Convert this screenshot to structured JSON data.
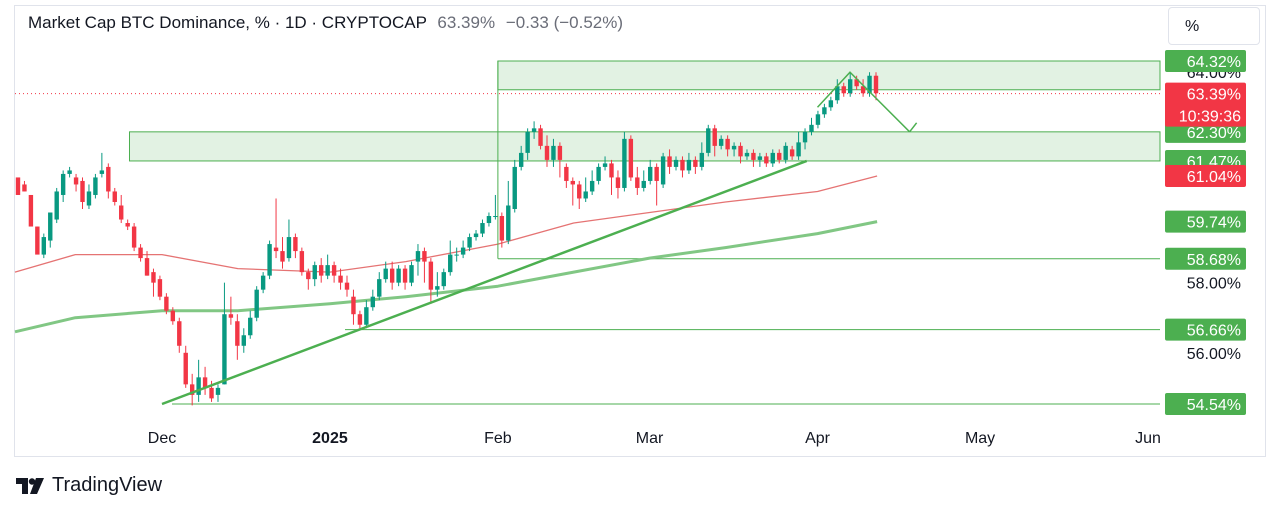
{
  "header": {
    "title": "Market Cap BTC Dominance, % · 1D · CRYPTOCAP",
    "last": "63.39%",
    "change": "−0.33 (−0.52%)"
  },
  "unit_button": "%",
  "brand": {
    "name": "TradingView",
    "logo_icon": "tradingview-logo-icon"
  },
  "price_tags": {
    "current": {
      "price": "63.39%",
      "countdown": "10:39:36",
      "color": "#f23645"
    },
    "ma_red": {
      "price": "61.04%",
      "color": "#f23645"
    },
    "levels": [
      {
        "price": "64.32%",
        "color": "#4caf50"
      },
      {
        "price": "62.30%",
        "color": "#4caf50"
      },
      {
        "price": "61.47%",
        "color": "#4caf50"
      },
      {
        "price": "59.74%",
        "color": "#4caf50"
      },
      {
        "price": "58.68%",
        "color": "#4caf50"
      },
      {
        "price": "56.66%",
        "color": "#4caf50"
      },
      {
        "price": "54.54%",
        "color": "#4caf50"
      }
    ],
    "axis_ticks": [
      "64.00%",
      "58.00%",
      "56.00%"
    ]
  },
  "chart_data": {
    "type": "candlestick",
    "xlabel": "",
    "ylabel": "",
    "x_ticks": [
      "Dec",
      "2025",
      "Feb",
      "Mar",
      "Apr",
      "May",
      "Jun"
    ],
    "x_tick_dates": [
      "2024-12-01",
      "2025-01-01",
      "2025-02-01",
      "2025-03-01",
      "2025-04-01",
      "2025-05-01",
      "2025-06-01"
    ],
    "y_ticks": [
      58.0,
      56.0
    ],
    "last_value": 63.39,
    "up_color": "#089981",
    "down_color": "#f23645",
    "series": [
      {
        "kind": "ohlc",
        "values": [
          [
            61.0,
            60.5,
            61.0,
            60.5
          ],
          [
            60.8,
            60.6,
            60.9,
            60.6
          ],
          [
            60.5,
            59.6,
            60.5,
            59.7
          ],
          [
            59.6,
            58.8,
            59.6,
            58.9
          ],
          [
            58.8,
            59.3,
            59.4,
            58.7
          ],
          [
            59.2,
            60.0,
            60.0,
            59.0
          ],
          [
            59.8,
            60.6,
            60.7,
            59.7
          ],
          [
            60.5,
            61.1,
            61.2,
            60.3
          ],
          [
            61.1,
            61.2,
            61.3,
            61.0
          ],
          [
            61.0,
            60.8,
            61.1,
            60.6
          ],
          [
            60.9,
            60.3,
            61.0,
            60.1
          ],
          [
            60.2,
            60.6,
            60.8,
            60.1
          ],
          [
            60.5,
            61.0,
            61.1,
            60.4
          ],
          [
            61.1,
            61.2,
            61.7,
            61.0
          ],
          [
            61.3,
            60.6,
            61.4,
            60.4
          ],
          [
            60.6,
            60.3,
            60.7,
            60.2
          ],
          [
            60.2,
            59.8,
            60.5,
            59.7
          ],
          [
            59.7,
            59.6,
            59.8,
            59.5
          ],
          [
            59.6,
            59.0,
            59.7,
            58.9
          ],
          [
            59.0,
            58.7,
            59.1,
            58.6
          ],
          [
            58.7,
            58.2,
            58.9,
            58.2
          ],
          [
            58.3,
            58.0,
            58.4,
            57.6
          ],
          [
            58.1,
            57.6,
            58.2,
            57.5
          ],
          [
            57.6,
            57.2,
            57.7,
            57.1
          ],
          [
            57.2,
            56.9,
            57.3,
            56.8
          ],
          [
            56.9,
            56.2,
            57.0,
            56.0
          ],
          [
            56.0,
            55.1,
            56.2,
            55.0
          ],
          [
            55.1,
            54.8,
            55.4,
            54.5
          ],
          [
            54.8,
            55.3,
            55.8,
            54.6
          ],
          [
            55.3,
            55.0,
            55.6,
            54.8
          ],
          [
            55.0,
            54.7,
            55.2,
            54.6
          ],
          [
            54.8,
            55.0,
            55.1,
            54.6
          ],
          [
            55.1,
            57.1,
            58.0,
            55.1
          ],
          [
            57.1,
            57.0,
            57.6,
            56.8
          ],
          [
            56.9,
            56.2,
            57.1,
            55.8
          ],
          [
            56.2,
            56.5,
            56.7,
            56.0
          ],
          [
            56.5,
            57.0,
            57.2,
            56.4
          ],
          [
            57.0,
            57.8,
            57.9,
            56.9
          ],
          [
            57.8,
            58.2,
            58.3,
            57.7
          ],
          [
            58.2,
            59.1,
            59.2,
            58.1
          ],
          [
            59.0,
            58.9,
            60.4,
            58.7
          ],
          [
            58.9,
            58.6,
            59.3,
            58.4
          ],
          [
            58.7,
            59.3,
            59.8,
            58.6
          ],
          [
            59.3,
            58.9,
            59.4,
            58.7
          ],
          [
            58.9,
            58.3,
            59.0,
            58.2
          ],
          [
            58.3,
            58.1,
            58.4,
            57.8
          ],
          [
            58.1,
            58.5,
            58.6,
            57.9
          ],
          [
            58.5,
            58.2,
            58.7,
            58.0
          ],
          [
            58.2,
            58.5,
            58.8,
            58.1
          ],
          [
            58.5,
            58.2,
            58.6,
            58.0
          ],
          [
            58.2,
            58.0,
            58.4,
            57.8
          ],
          [
            58.0,
            57.8,
            58.2,
            57.6
          ],
          [
            57.6,
            57.1,
            57.8,
            56.8
          ],
          [
            57.1,
            56.8,
            57.2,
            56.7
          ],
          [
            56.8,
            57.3,
            57.5,
            56.7
          ],
          [
            57.3,
            57.6,
            57.8,
            57.2
          ],
          [
            57.6,
            58.1,
            58.3,
            57.5
          ],
          [
            58.1,
            58.4,
            58.6,
            58.0
          ],
          [
            58.4,
            58.0,
            58.6,
            57.8
          ],
          [
            58.0,
            58.4,
            58.5,
            57.9
          ],
          [
            58.4,
            58.0,
            58.5,
            57.8
          ],
          [
            58.0,
            58.5,
            58.6,
            57.9
          ],
          [
            58.6,
            58.9,
            59.1,
            58.2
          ],
          [
            58.9,
            58.6,
            59.0,
            58.0
          ],
          [
            58.6,
            57.8,
            58.7,
            57.4
          ],
          [
            57.8,
            57.9,
            58.3,
            57.6
          ],
          [
            57.9,
            58.3,
            58.4,
            57.8
          ],
          [
            58.3,
            58.8,
            59.2,
            58.2
          ],
          [
            58.8,
            58.8,
            59.0,
            58.6
          ],
          [
            58.8,
            59.0,
            59.2,
            58.7
          ],
          [
            59.0,
            59.3,
            59.4,
            58.9
          ],
          [
            59.3,
            59.4,
            59.5,
            59.2
          ],
          [
            59.4,
            59.7,
            59.8,
            59.3
          ],
          [
            59.7,
            59.9,
            60.0,
            59.6
          ],
          [
            59.9,
            59.9,
            60.5,
            59.8
          ],
          [
            59.9,
            59.2,
            60.0,
            59.0
          ],
          [
            59.2,
            60.2,
            60.9,
            59.1
          ],
          [
            60.1,
            61.3,
            61.5,
            60.0
          ],
          [
            61.3,
            61.7,
            61.9,
            61.2
          ],
          [
            61.7,
            62.3,
            62.4,
            61.5
          ],
          [
            62.3,
            62.4,
            62.6,
            62.1
          ],
          [
            62.4,
            61.9,
            62.5,
            61.8
          ],
          [
            61.9,
            61.5,
            62.2,
            61.3
          ],
          [
            61.5,
            61.9,
            62.1,
            61.3
          ],
          [
            61.9,
            61.5,
            62.0,
            61.0
          ],
          [
            61.3,
            60.9,
            61.4,
            60.7
          ],
          [
            60.9,
            60.8,
            61.0,
            60.2
          ],
          [
            60.8,
            60.4,
            60.9,
            60.1
          ],
          [
            60.4,
            60.6,
            61.0,
            60.3
          ],
          [
            60.6,
            60.9,
            61.2,
            60.5
          ],
          [
            60.9,
            61.3,
            61.4,
            60.8
          ],
          [
            61.3,
            61.4,
            61.6,
            61.2
          ],
          [
            61.4,
            61.0,
            61.5,
            60.5
          ],
          [
            61.0,
            60.7,
            61.2,
            60.4
          ],
          [
            60.7,
            62.1,
            62.3,
            60.6
          ],
          [
            62.1,
            61.0,
            62.2,
            60.9
          ],
          [
            61.0,
            60.7,
            61.3,
            60.5
          ],
          [
            60.7,
            60.9,
            61.2,
            60.6
          ],
          [
            60.9,
            61.3,
            61.5,
            60.8
          ],
          [
            61.3,
            60.9,
            61.4,
            60.2
          ],
          [
            60.8,
            61.6,
            61.7,
            60.7
          ],
          [
            61.6,
            61.3,
            61.8,
            61.1
          ],
          [
            61.3,
            61.5,
            61.6,
            61.2
          ],
          [
            61.5,
            61.2,
            61.6,
            61.0
          ],
          [
            61.2,
            61.5,
            61.7,
            61.1
          ],
          [
            61.5,
            61.3,
            61.6,
            61.1
          ],
          [
            61.3,
            61.7,
            62.0,
            61.2
          ],
          [
            61.7,
            62.4,
            62.5,
            61.6
          ],
          [
            62.4,
            61.9,
            62.5,
            61.6
          ],
          [
            61.9,
            62.1,
            62.2,
            61.8
          ],
          [
            62.1,
            61.8,
            62.2,
            61.6
          ],
          [
            61.8,
            61.9,
            62.0,
            61.6
          ],
          [
            61.9,
            61.6,
            62.0,
            61.4
          ],
          [
            61.6,
            61.7,
            61.8,
            61.5
          ],
          [
            61.7,
            61.5,
            61.8,
            61.3
          ],
          [
            61.5,
            61.6,
            61.7,
            61.3
          ],
          [
            61.6,
            61.4,
            61.7,
            61.3
          ],
          [
            61.4,
            61.7,
            61.8,
            61.3
          ],
          [
            61.7,
            61.5,
            61.8,
            61.4
          ],
          [
            61.5,
            61.9,
            62.0,
            61.4
          ],
          [
            61.8,
            61.6,
            61.9,
            61.5
          ],
          [
            61.6,
            62.0,
            62.3,
            61.5
          ],
          [
            62.0,
            62.3,
            62.4,
            61.8
          ],
          [
            62.3,
            62.5,
            62.7,
            62.2
          ],
          [
            62.5,
            62.8,
            62.9,
            62.4
          ],
          [
            62.8,
            63.0,
            63.1,
            62.7
          ],
          [
            63.0,
            63.2,
            63.3,
            62.9
          ],
          [
            63.2,
            63.6,
            63.8,
            63.1
          ],
          [
            63.6,
            63.4,
            63.7,
            63.3
          ],
          [
            63.4,
            63.8,
            64.0,
            63.3
          ],
          [
            63.8,
            63.6,
            63.9,
            63.5
          ],
          [
            63.6,
            63.4,
            63.8,
            63.3
          ],
          [
            63.4,
            63.9,
            64.0,
            63.3
          ],
          [
            63.9,
            63.4,
            64.0,
            63.2
          ]
        ]
      },
      {
        "name": "",
        "kind": "ma_short",
        "color": "#e57373",
        "x_dates": [
          "2024-11-01",
          "2024-11-15",
          "2024-12-01",
          "2024-12-15",
          "2025-01-01",
          "2025-01-15",
          "2025-02-01",
          "2025-02-15",
          "2025-03-01",
          "2025-03-15",
          "2025-04-01",
          "2025-04-12"
        ],
        "values": [
          58.3,
          58.8,
          58.8,
          58.4,
          58.3,
          58.6,
          59.1,
          59.7,
          60.0,
          60.3,
          60.6,
          61.04
        ]
      },
      {
        "name": "",
        "kind": "ma_long",
        "color": "#81c784",
        "x_dates": [
          "2024-11-01",
          "2024-11-15",
          "2024-12-01",
          "2024-12-15",
          "2025-01-01",
          "2025-01-15",
          "2025-02-01",
          "2025-02-15",
          "2025-03-01",
          "2025-03-15",
          "2025-04-01",
          "2025-04-12"
        ],
        "values": [
          56.6,
          57.0,
          57.2,
          57.2,
          57.4,
          57.6,
          57.9,
          58.3,
          58.7,
          59.0,
          59.4,
          59.74
        ]
      }
    ],
    "zones": [
      {
        "from_date": "2025-02-01",
        "to_date": "2025-06-10",
        "low": 63.5,
        "high": 64.32
      },
      {
        "from_date": "2024-11-25",
        "to_date": "2025-06-10",
        "low": 61.47,
        "high": 62.3
      }
    ],
    "horizontal_lines": [
      58.68,
      56.66,
      54.54
    ],
    "trendline": {
      "from": [
        "2024-12-01",
        54.54
      ],
      "to": [
        "2025-03-30",
        61.47
      ]
    },
    "projection": [
      [
        "2025-04-01",
        63.0
      ],
      [
        "2025-04-07",
        64.0
      ],
      [
        "2025-04-18",
        62.3
      ]
    ],
    "vertical_markers": [
      {
        "date": "2025-02-01",
        "from": 58.68,
        "to": 64.32
      },
      {
        "date": "2024-11-25",
        "from": 61.47,
        "to": 62.3
      }
    ]
  }
}
